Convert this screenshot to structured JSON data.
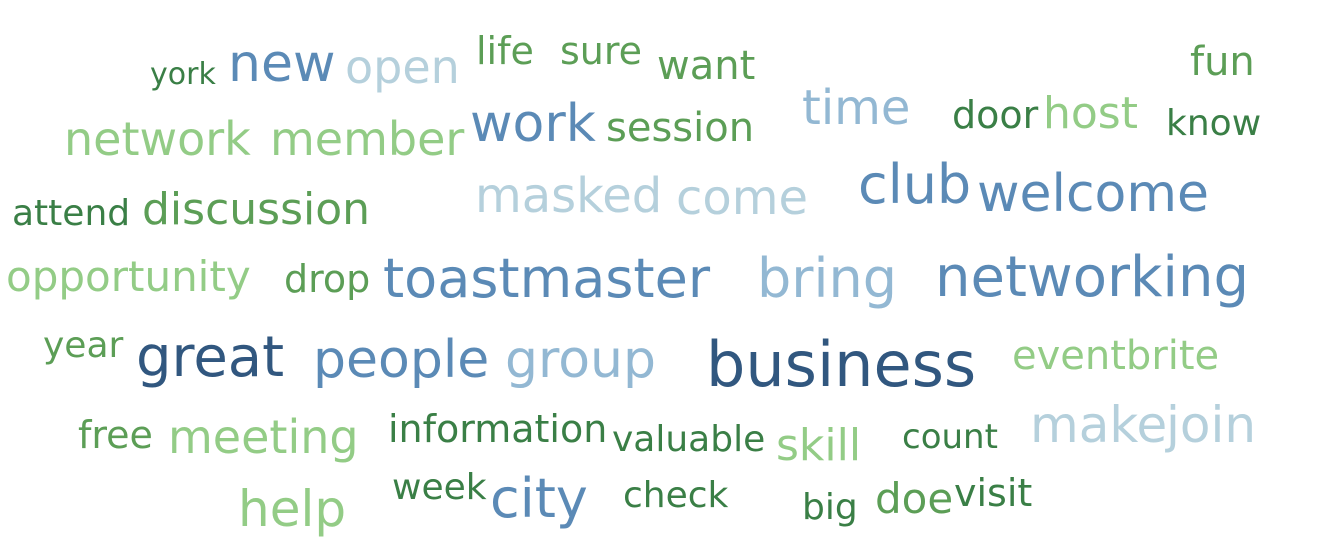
{
  "colors": {
    "dark_green": "#3a7f46",
    "mid_green": "#5c9e56",
    "light_green": "#93cc86",
    "dark_blue": "#31577f",
    "mid_blue": "#5b8ab6",
    "light_blue": "#93b8d3",
    "pale_blue": "#b5d0dc"
  },
  "words": [
    {
      "text": "york",
      "color": "dark_green"
    },
    {
      "text": "new",
      "color": "mid_blue"
    },
    {
      "text": "open",
      "color": "pale_blue"
    },
    {
      "text": "life",
      "color": "mid_green"
    },
    {
      "text": "sure",
      "color": "mid_green"
    },
    {
      "text": "want",
      "color": "mid_green"
    },
    {
      "text": "fun",
      "color": "mid_green"
    },
    {
      "text": "network",
      "color": "light_green"
    },
    {
      "text": "member",
      "color": "light_green"
    },
    {
      "text": "work",
      "color": "mid_blue"
    },
    {
      "text": "session",
      "color": "mid_green"
    },
    {
      "text": "time",
      "color": "light_blue"
    },
    {
      "text": "door",
      "color": "dark_green"
    },
    {
      "text": "host",
      "color": "light_green"
    },
    {
      "text": "know",
      "color": "dark_green"
    },
    {
      "text": "attend",
      "color": "dark_green"
    },
    {
      "text": "discussion",
      "color": "mid_green"
    },
    {
      "text": "masked",
      "color": "pale_blue"
    },
    {
      "text": "come",
      "color": "pale_blue"
    },
    {
      "text": "club",
      "color": "mid_blue"
    },
    {
      "text": "welcome",
      "color": "mid_blue"
    },
    {
      "text": "opportunity",
      "color": "light_green"
    },
    {
      "text": "drop",
      "color": "mid_green"
    },
    {
      "text": "toastmaster",
      "color": "mid_blue"
    },
    {
      "text": "bring",
      "color": "light_blue"
    },
    {
      "text": "networking",
      "color": "mid_blue"
    },
    {
      "text": "year",
      "color": "mid_green"
    },
    {
      "text": "great",
      "color": "dark_blue"
    },
    {
      "text": "people",
      "color": "mid_blue"
    },
    {
      "text": "group",
      "color": "light_blue"
    },
    {
      "text": "business",
      "color": "dark_blue"
    },
    {
      "text": "eventbrite",
      "color": "light_green"
    },
    {
      "text": "free",
      "color": "mid_green"
    },
    {
      "text": "meeting",
      "color": "light_green"
    },
    {
      "text": "information",
      "color": "dark_green"
    },
    {
      "text": "valuable",
      "color": "dark_green"
    },
    {
      "text": "skill",
      "color": "light_green"
    },
    {
      "text": "count",
      "color": "dark_green"
    },
    {
      "text": "make",
      "color": "pale_blue"
    },
    {
      "text": "join",
      "color": "pale_blue"
    },
    {
      "text": "help",
      "color": "light_green"
    },
    {
      "text": "week",
      "color": "dark_green"
    },
    {
      "text": "city",
      "color": "mid_blue"
    },
    {
      "text": "check",
      "color": "dark_green"
    },
    {
      "text": "big",
      "color": "dark_green"
    },
    {
      "text": "doe",
      "color": "mid_green"
    },
    {
      "text": "visit",
      "color": "dark_green"
    }
  ]
}
